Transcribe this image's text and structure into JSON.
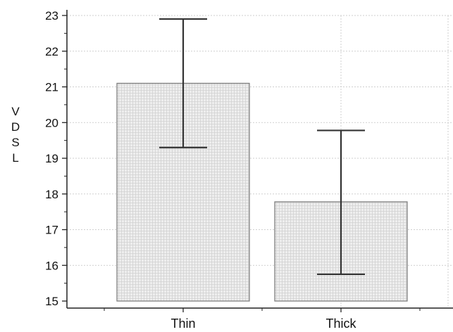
{
  "chart_data": {
    "type": "bar",
    "categories": [
      "Thin",
      "Thick"
    ],
    "values": [
      21.1,
      17.78
    ],
    "error_low": [
      19.3,
      15.75
    ],
    "error_high": [
      22.9,
      19.78
    ],
    "title": "",
    "xlabel": "",
    "ylabel": "VDSL",
    "ylim": [
      15,
      23
    ],
    "yticks": [
      15,
      16,
      17,
      18,
      19,
      20,
      21,
      22,
      23
    ],
    "grid": true,
    "bar_fill": "#ececec",
    "bar_stroke": "#777777",
    "error_color": "#333333",
    "grid_color": "#cfcfcf"
  }
}
